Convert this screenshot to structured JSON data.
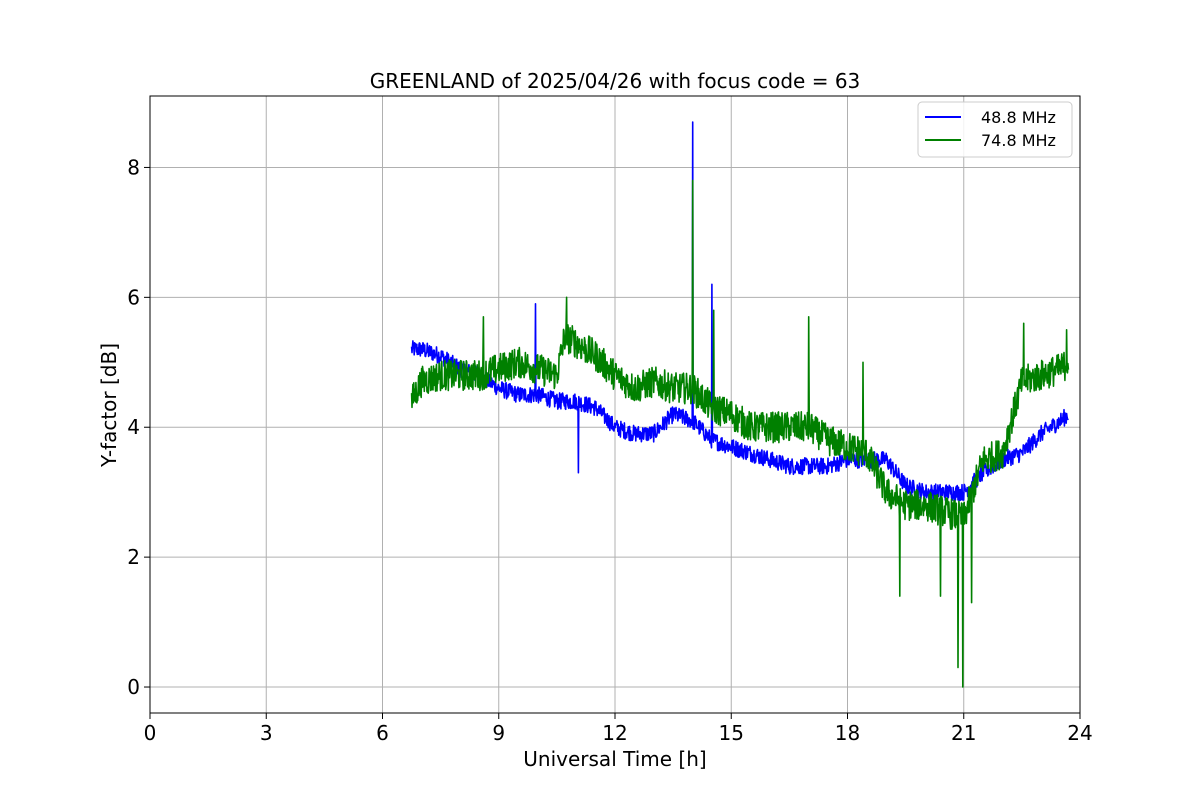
{
  "chart_data": {
    "type": "line",
    "title": "GREENLAND of 2025/04/26 with focus code = 63",
    "xlabel": "Universal Time [h]",
    "ylabel": "Y-factor [dB]",
    "xlim": [
      0,
      24
    ],
    "ylim": [
      -0.4,
      9.1
    ],
    "xticks": [
      0,
      3,
      6,
      9,
      12,
      15,
      18,
      21,
      24
    ],
    "yticks": [
      0,
      2,
      4,
      6,
      8
    ],
    "grid": true,
    "legend_position": "top-right",
    "series": [
      {
        "name": "48.8 MHz",
        "color": "#0000ff",
        "x": [
          6.75,
          7.0,
          7.5,
          8.0,
          8.5,
          9.0,
          9.5,
          10.0,
          10.5,
          11.0,
          11.5,
          12.0,
          12.5,
          13.0,
          13.5,
          14.0,
          14.5,
          15.0,
          15.5,
          16.0,
          16.5,
          17.0,
          17.5,
          18.0,
          18.5,
          19.0,
          19.5,
          20.0,
          20.5,
          21.0,
          21.5,
          22.0,
          22.5,
          23.0,
          23.5,
          23.7
        ],
        "y": [
          5.2,
          5.2,
          5.1,
          4.9,
          4.8,
          4.6,
          4.5,
          4.5,
          4.4,
          4.4,
          4.3,
          4.0,
          3.9,
          3.9,
          4.2,
          4.1,
          3.8,
          3.7,
          3.6,
          3.5,
          3.4,
          3.4,
          3.4,
          3.5,
          3.5,
          3.5,
          3.1,
          3.0,
          3.0,
          3.0,
          3.3,
          3.5,
          3.6,
          3.9,
          4.1,
          4.2
        ],
        "spikes": [
          {
            "x": 9.95,
            "y": 5.9
          },
          {
            "x": 11.05,
            "y": 3.3
          },
          {
            "x": 14.0,
            "y": 8.7
          },
          {
            "x": 14.5,
            "y": 6.2
          }
        ]
      },
      {
        "name": "74.8 MHz",
        "color": "#008000",
        "x": [
          6.75,
          7.0,
          7.5,
          8.0,
          8.5,
          9.0,
          9.5,
          10.0,
          10.5,
          10.7,
          11.0,
          11.5,
          12.0,
          12.5,
          13.0,
          13.5,
          14.0,
          14.5,
          15.0,
          15.5,
          16.0,
          16.5,
          17.0,
          17.5,
          18.0,
          18.5,
          19.0,
          19.5,
          20.0,
          20.5,
          21.0,
          21.5,
          22.0,
          22.5,
          23.0,
          23.5,
          23.7
        ],
        "y": [
          4.4,
          4.7,
          4.8,
          4.8,
          4.8,
          4.9,
          5.0,
          4.9,
          4.8,
          5.4,
          5.3,
          5.1,
          4.8,
          4.6,
          4.7,
          4.6,
          4.6,
          4.3,
          4.2,
          4.0,
          4.0,
          4.0,
          4.0,
          3.8,
          3.7,
          3.6,
          3.0,
          2.8,
          2.8,
          2.7,
          2.6,
          3.5,
          3.6,
          4.7,
          4.8,
          4.9,
          5.0
        ],
        "spikes": [
          {
            "x": 8.6,
            "y": 5.7
          },
          {
            "x": 10.75,
            "y": 6.0
          },
          {
            "x": 14.0,
            "y": 7.8
          },
          {
            "x": 14.55,
            "y": 5.8
          },
          {
            "x": 17.0,
            "y": 5.7
          },
          {
            "x": 18.4,
            "y": 5.0
          },
          {
            "x": 19.35,
            "y": 1.4
          },
          {
            "x": 20.4,
            "y": 1.4
          },
          {
            "x": 20.85,
            "y": 0.3
          },
          {
            "x": 20.98,
            "y": 0.0
          },
          {
            "x": 21.2,
            "y": 1.3
          },
          {
            "x": 22.55,
            "y": 5.6
          },
          {
            "x": 23.65,
            "y": 5.5
          }
        ]
      }
    ]
  }
}
